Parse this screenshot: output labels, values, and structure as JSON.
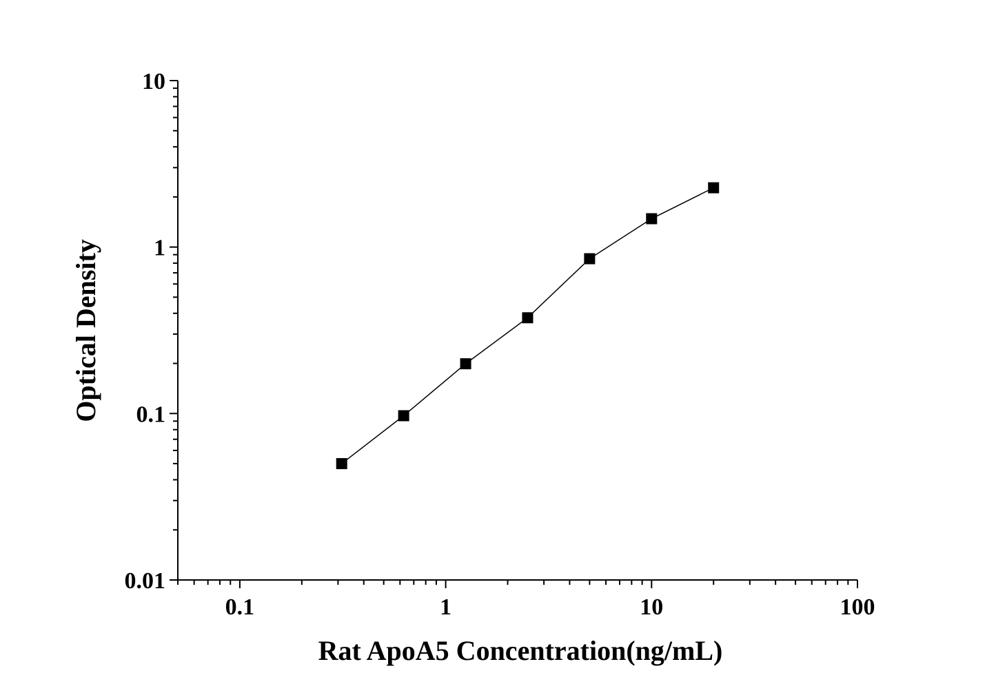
{
  "chart_data": {
    "type": "line",
    "title": "",
    "xlabel": "Rat ApoA5 Concentration(ng/mL)",
    "ylabel": "Optical Density",
    "x_scale": "log",
    "y_scale": "log",
    "xlim": [
      0.05,
      100
    ],
    "ylim": [
      0.01,
      10
    ],
    "x_ticks": [
      "0.1",
      "1",
      "10",
      "100"
    ],
    "y_ticks": [
      "0.01",
      "0.1",
      "1",
      "10"
    ],
    "grid": false,
    "legend": "none",
    "marker": "square",
    "color": "#000000",
    "series": [
      {
        "x": [
          0.3125,
          0.625,
          1.25,
          2.5,
          5,
          10,
          20
        ],
        "y": [
          0.05,
          0.097,
          0.199,
          0.376,
          0.851,
          1.48,
          2.27
        ]
      }
    ]
  }
}
